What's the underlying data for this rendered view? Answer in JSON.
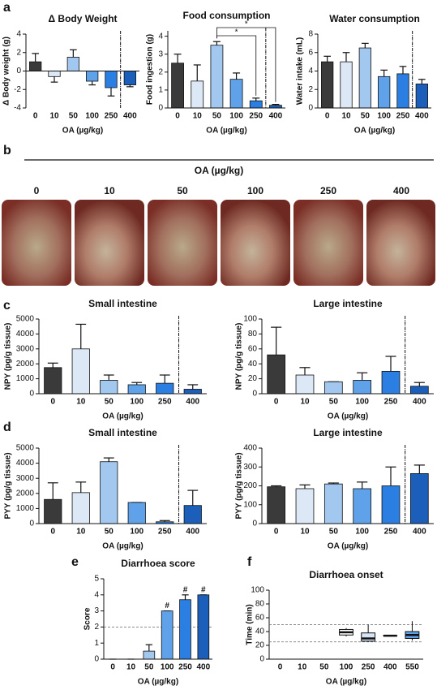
{
  "panel_labels": [
    "a",
    "b",
    "c",
    "d",
    "e",
    "f"
  ],
  "photo_strip": {
    "title": "OA (µg/kg)",
    "labels": [
      "0",
      "10",
      "50",
      "100",
      "250",
      "400"
    ]
  },
  "chart_data": [
    {
      "type": "bar",
      "title": "Δ Body Weight",
      "y_label": "Δ Body weight (g)",
      "x_label": "OA (µg/kg)",
      "categories": [
        "0",
        "10",
        "50",
        "100",
        "250",
        "400"
      ],
      "values": [
        1.0,
        -0.6,
        1.5,
        -1.1,
        -1.8,
        -1.5
      ],
      "errors": [
        0.9,
        0.6,
        0.8,
        0.4,
        0.9,
        0.2
      ],
      "colors": [
        "#3a3a3a",
        "#dde8f7",
        "#a3c8f0",
        "#5fa2ea",
        "#2b7fe2",
        "#1c5fba"
      ],
      "ylim": [
        -4,
        4
      ],
      "yticks": [
        -4,
        -2,
        0,
        2,
        4
      ]
    },
    {
      "type": "bar",
      "title": "Food consumption",
      "y_label": "Food ingestion (g)",
      "x_label": "OA (µg/kg)",
      "categories": [
        "0",
        "10",
        "50",
        "100",
        "250",
        "400"
      ],
      "values": [
        2.5,
        1.5,
        3.5,
        1.6,
        0.4,
        0.15
      ],
      "errors": [
        0.5,
        0.9,
        0.2,
        0.35,
        0.15,
        0.05
      ],
      "colors": [
        "#3a3a3a",
        "#dde8f7",
        "#a3c8f0",
        "#5fa2ea",
        "#2b7fe2",
        "#1c5fba"
      ],
      "ylim": [
        0,
        4.3
      ],
      "yticks": [
        0,
        1,
        2,
        3,
        4
      ],
      "annotations": [
        "*",
        "*"
      ]
    },
    {
      "type": "bar",
      "title": "Water consumption",
      "y_label": "Water intake (mL)",
      "x_label": "OA (µg/kg)",
      "categories": [
        "0",
        "10",
        "50",
        "100",
        "250",
        "400"
      ],
      "values": [
        5.0,
        5.0,
        6.5,
        3.4,
        3.7,
        2.6
      ],
      "errors": [
        0.6,
        1.0,
        0.5,
        0.7,
        0.8,
        0.5
      ],
      "colors": [
        "#3a3a3a",
        "#dde8f7",
        "#a3c8f0",
        "#5fa2ea",
        "#2b7fe2",
        "#1c5fba"
      ],
      "ylim": [
        0,
        8
      ],
      "yticks": [
        0,
        2,
        4,
        6,
        8
      ]
    },
    {
      "type": "bar",
      "title": "Small intestine",
      "y_label": "NPY (pg/g tissue)",
      "x_label": "OA (µg/kg)",
      "categories": [
        "0",
        "10",
        "50",
        "100",
        "250",
        "400"
      ],
      "values": [
        1750,
        3000,
        900,
        600,
        700,
        300
      ],
      "errors": [
        300,
        1650,
        350,
        150,
        550,
        300
      ],
      "colors": [
        "#3a3a3a",
        "#dde8f7",
        "#a3c8f0",
        "#5fa2ea",
        "#2b7fe2",
        "#1c5fba"
      ],
      "ylim": [
        0,
        5000
      ],
      "yticks": [
        0,
        1000,
        2000,
        3000,
        4000,
        5000
      ]
    },
    {
      "type": "bar",
      "title": "Large intestine",
      "y_label": "NPY (pg/g tissue)",
      "x_label": "OA (µg/kg)",
      "categories": [
        "0",
        "10",
        "50",
        "100",
        "250",
        "400"
      ],
      "values": [
        52,
        25,
        16,
        18,
        30,
        10
      ],
      "errors": [
        37,
        10,
        0,
        10,
        20,
        5
      ],
      "colors": [
        "#3a3a3a",
        "#dde8f7",
        "#a3c8f0",
        "#5fa2ea",
        "#2b7fe2",
        "#1c5fba"
      ],
      "ylim": [
        0,
        100
      ],
      "yticks": [
        0,
        20,
        40,
        60,
        80,
        100
      ]
    },
    {
      "type": "bar",
      "title": "Small intestine",
      "y_label": "PYY (pg/g tissue)",
      "x_label": "OA (µg/kg)",
      "categories": [
        "0",
        "10",
        "50",
        "100",
        "250",
        "400"
      ],
      "values": [
        1600,
        2050,
        4100,
        1400,
        120,
        1200
      ],
      "errors": [
        1100,
        700,
        250,
        0,
        80,
        1000
      ],
      "colors": [
        "#3a3a3a",
        "#dde8f7",
        "#a3c8f0",
        "#5fa2ea",
        "#2b7fe2",
        "#1c5fba"
      ],
      "ylim": [
        0,
        5000
      ],
      "yticks": [
        0,
        1000,
        2000,
        3000,
        4000,
        5000
      ]
    },
    {
      "type": "bar",
      "title": "Large intestine",
      "y_label": "PYY (pg/g tissue)",
      "x_label": "OA (µg/kg)",
      "categories": [
        "0",
        "10",
        "50",
        "100",
        "250",
        "400"
      ],
      "values": [
        195,
        185,
        210,
        185,
        200,
        265
      ],
      "errors": [
        5,
        20,
        5,
        35,
        100,
        45
      ],
      "colors": [
        "#3a3a3a",
        "#dde8f7",
        "#a3c8f0",
        "#5fa2ea",
        "#2b7fe2",
        "#1c5fba"
      ],
      "ylim": [
        0,
        400
      ],
      "yticks": [
        0,
        100,
        200,
        300,
        400
      ]
    },
    {
      "type": "bar",
      "title": "Diarrhoea score",
      "y_label": "Score",
      "x_label": "OA (µg/kg)",
      "categories": [
        "0",
        "10",
        "50",
        "100",
        "250",
        "400"
      ],
      "values": [
        0,
        0,
        0.5,
        3,
        3.7,
        4
      ],
      "errors": [
        0,
        0,
        0.4,
        0,
        0.3,
        0
      ],
      "colors": [
        "#3a3a3a",
        "#dde8f7",
        "#a3c8f0",
        "#5fa2ea",
        "#2b7fe2",
        "#1c5fba"
      ],
      "ylim": [
        0,
        5
      ],
      "yticks": [
        0,
        1,
        2,
        3,
        4,
        5
      ],
      "reference_lines": [
        2
      ],
      "annotations": [
        "#",
        "#",
        "#"
      ]
    },
    {
      "type": "box",
      "title": "Diarrhoea onset",
      "y_label": "Time (min)",
      "x_label": "OA (µg/kg)",
      "categories": [
        "0",
        "10",
        "50",
        "100",
        "250",
        "400",
        "550"
      ],
      "min": [
        null,
        null,
        null,
        33,
        25,
        33,
        27
      ],
      "q1": [
        null,
        null,
        null,
        35,
        26,
        34,
        30
      ],
      "median": [
        null,
        null,
        null,
        39,
        30,
        34,
        35
      ],
      "q3": [
        null,
        null,
        null,
        43,
        38,
        34,
        40
      ],
      "max": [
        null,
        null,
        null,
        45,
        50,
        35,
        55
      ],
      "colors": [
        null,
        null,
        null,
        "#ffffff",
        "#d6e4f5",
        "#ffffff",
        "#5fa2ea"
      ],
      "ylim": [
        0,
        100
      ],
      "yticks": [
        0,
        20,
        40,
        60,
        80,
        100
      ],
      "reference_lines": [
        25,
        50
      ]
    }
  ]
}
